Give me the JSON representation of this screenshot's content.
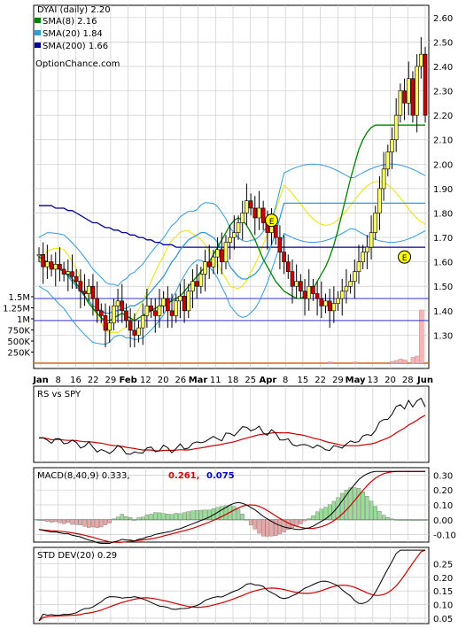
{
  "chart_data": {
    "type": "line",
    "title": "DYAI (daily) 2.20",
    "watermark": "OptionChance.com",
    "x_tick_labels": [
      "Jan",
      "8",
      "16",
      "22",
      "29",
      "Feb",
      "12",
      "20",
      "26",
      "Mar",
      "11",
      "18",
      "25",
      "Apr",
      "8",
      "15",
      "22",
      "29",
      "May",
      "13",
      "20",
      "28",
      "Jun"
    ],
    "x_tick_label_bold": [
      "Jan",
      "Feb",
      "Mar",
      "Apr",
      "May",
      "Jun"
    ],
    "price_panel": {
      "ylim": [
        1.2,
        2.65
      ],
      "yticks": [
        "1.30",
        "1.40",
        "1.50",
        "1.60",
        "1.70",
        "1.80",
        "1.90",
        "2.00",
        "2.10",
        "2.20",
        "2.30",
        "2.40",
        "2.50",
        "2.60"
      ],
      "volume_ticks": [
        "250K",
        "500K",
        "750K",
        "1M",
        "1.25M",
        "1.5M"
      ],
      "volume_max": 1500000,
      "legend": [
        {
          "label": "SMA(8) 2.16",
          "color": "#008000"
        },
        {
          "label": "SMA(20) 1.84",
          "color": "#3399dd"
        },
        {
          "label": "SMA(200) 1.66",
          "color": "#000099"
        }
      ],
      "horizontal_lines": [
        1.45,
        1.36
      ],
      "earnings_markers": [
        {
          "label": "E",
          "at_index": 56,
          "price": 1.77
        },
        {
          "label": "E",
          "at_index": 88,
          "price": 1.62
        }
      ],
      "close": [
        1.63,
        1.58,
        1.6,
        1.57,
        1.59,
        1.57,
        1.55,
        1.56,
        1.54,
        1.52,
        1.48,
        1.47,
        1.5,
        1.45,
        1.4,
        1.38,
        1.32,
        1.35,
        1.42,
        1.44,
        1.4,
        1.36,
        1.32,
        1.3,
        1.33,
        1.38,
        1.42,
        1.4,
        1.38,
        1.42,
        1.45,
        1.4,
        1.38,
        1.44,
        1.46,
        1.4,
        1.48,
        1.52,
        1.5,
        1.55,
        1.6,
        1.58,
        1.62,
        1.65,
        1.6,
        1.68,
        1.7,
        1.72,
        1.76,
        1.8,
        1.85,
        1.82,
        1.78,
        1.82,
        1.76,
        1.72,
        1.75,
        1.7,
        1.64,
        1.6,
        1.56,
        1.5,
        1.52,
        1.48,
        1.45,
        1.5,
        1.47,
        1.45,
        1.42,
        1.44,
        1.4,
        1.43,
        1.45,
        1.48,
        1.5,
        1.52,
        1.56,
        1.6,
        1.64,
        1.66,
        1.72,
        1.8,
        1.9,
        1.98,
        2.05,
        2.1,
        2.2,
        2.3,
        2.25,
        2.35,
        2.2,
        2.4,
        2.45,
        2.2
      ],
      "sma8": [
        1.62,
        1.61,
        1.6,
        1.59,
        1.58,
        1.57,
        1.56,
        1.55,
        1.53,
        1.51,
        1.49,
        1.46,
        1.43,
        1.41,
        1.39,
        1.37,
        1.36,
        1.36,
        1.37,
        1.38,
        1.39,
        1.38,
        1.37,
        1.36,
        1.37,
        1.38,
        1.39,
        1.4,
        1.41,
        1.42,
        1.42,
        1.43,
        1.44,
        1.45,
        1.46,
        1.48,
        1.5,
        1.52,
        1.54,
        1.56,
        1.58,
        1.6,
        1.63,
        1.66,
        1.69,
        1.72,
        1.75,
        1.77,
        1.78,
        1.77,
        1.75,
        1.72,
        1.69,
        1.65,
        1.61,
        1.58,
        1.55,
        1.52,
        1.5,
        1.48,
        1.47,
        1.46,
        1.45,
        1.45,
        1.46,
        1.47,
        1.49,
        1.52,
        1.55,
        1.58,
        1.62,
        1.67,
        1.73,
        1.8,
        1.87,
        1.94,
        2.0,
        2.06,
        2.1,
        2.13,
        2.15,
        2.16,
        2.16,
        2.16,
        2.16,
        2.16,
        2.16,
        2.16,
        2.16,
        2.16,
        2.16,
        2.16,
        2.16,
        2.16
      ],
      "sma20": [
        1.6,
        1.6,
        1.6,
        1.59,
        1.58,
        1.57,
        1.56,
        1.54,
        1.52,
        1.5,
        1.48,
        1.46,
        1.44,
        1.42,
        1.41,
        1.4,
        1.39,
        1.39,
        1.4,
        1.4,
        1.41,
        1.41,
        1.42,
        1.42,
        1.43,
        1.44,
        1.46,
        1.48,
        1.5,
        1.52,
        1.54,
        1.57,
        1.6,
        1.62,
        1.65,
        1.67,
        1.69,
        1.7,
        1.71,
        1.72,
        1.72,
        1.71,
        1.7,
        1.68,
        1.65,
        1.62,
        1.58,
        1.56,
        1.54,
        1.53,
        1.53,
        1.54,
        1.55,
        1.57,
        1.6,
        1.63,
        1.67,
        1.72,
        1.78,
        1.84,
        1.84,
        1.84,
        1.84,
        1.84,
        1.84,
        1.84,
        1.84,
        1.84,
        1.84,
        1.84,
        1.84,
        1.84,
        1.84,
        1.84,
        1.84,
        1.84,
        1.84,
        1.84,
        1.84,
        1.84,
        1.84,
        1.84,
        1.84,
        1.84,
        1.84,
        1.84,
        1.84,
        1.84,
        1.84,
        1.84,
        1.84,
        1.84,
        1.84,
        1.84
      ],
      "sma200": [
        1.83,
        1.83,
        1.83,
        1.83,
        1.82,
        1.82,
        1.82,
        1.81,
        1.81,
        1.8,
        1.79,
        1.78,
        1.77,
        1.76,
        1.76,
        1.75,
        1.74,
        1.74,
        1.73,
        1.73,
        1.72,
        1.72,
        1.71,
        1.71,
        1.7,
        1.7,
        1.69,
        1.69,
        1.68,
        1.68,
        1.67,
        1.67,
        1.67,
        1.66,
        1.66,
        1.66,
        1.66,
        1.66,
        1.66,
        1.66,
        1.66,
        1.66,
        1.66,
        1.66,
        1.66,
        1.66,
        1.66,
        1.66,
        1.66,
        1.66,
        1.66,
        1.66,
        1.66,
        1.66,
        1.66,
        1.66,
        1.66,
        1.66,
        1.66,
        1.66,
        1.66,
        1.66,
        1.66,
        1.66,
        1.66,
        1.66,
        1.66,
        1.66,
        1.66,
        1.66,
        1.66,
        1.66,
        1.66,
        1.66,
        1.66,
        1.66,
        1.66,
        1.66,
        1.66,
        1.66,
        1.66,
        1.66,
        1.66,
        1.66,
        1.66,
        1.66,
        1.66,
        1.66,
        1.66,
        1.66,
        1.66,
        1.66,
        1.66,
        1.66
      ],
      "volume_spikes": [
        [
          70,
          30000
        ],
        [
          76,
          25000
        ],
        [
          85,
          40000
        ],
        [
          86,
          60000
        ],
        [
          87,
          90000
        ],
        [
          88,
          70000
        ],
        [
          90,
          130000
        ],
        [
          91,
          160000
        ],
        [
          92,
          1200000
        ]
      ]
    },
    "rs_panel": {
      "label": "RS vs SPY",
      "series_colors": {
        "rs": "#000000",
        "avg": "#cc0000"
      }
    },
    "macd_panel": {
      "label": "MACD(8,40,9) 0.333,",
      "value_red": "0.261,",
      "value_blue": "0.075",
      "ylim": [
        -0.15,
        0.35
      ],
      "yticks": [
        "0.30",
        "0.20",
        "0.10",
        "0.00",
        "-0.10"
      ]
    },
    "std_panel": {
      "label": "STD DEV(20) 0.29",
      "ylim": [
        0.03,
        0.31
      ],
      "yticks": [
        "0.25",
        "0.20",
        "0.15",
        "0.10",
        "0.05"
      ]
    }
  }
}
